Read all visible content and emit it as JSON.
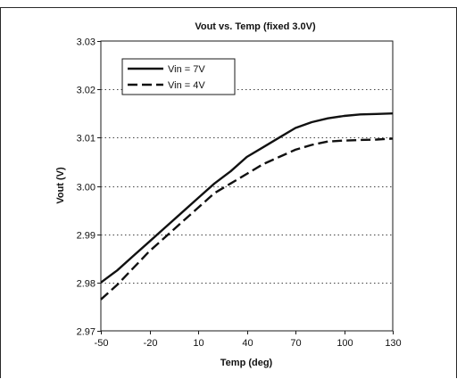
{
  "chart_data": {
    "type": "line",
    "title": "Vout vs. Temp (fixed 3.0V)",
    "xlabel": "Temp (deg)",
    "ylabel": "Vout (V)",
    "xlim": [
      -50,
      130
    ],
    "ylim": [
      2.97,
      3.03
    ],
    "x_ticks": [
      -50,
      -20,
      10,
      40,
      70,
      100,
      130
    ],
    "y_ticks": [
      2.97,
      2.98,
      2.99,
      3.0,
      3.01,
      3.02,
      3.03
    ],
    "x_tick_labels": [
      "-50",
      "-20",
      "10",
      "40",
      "70",
      "100",
      "130"
    ],
    "y_tick_labels": [
      "2.97",
      "2.98",
      "2.99",
      "3.00",
      "3.01",
      "3.02",
      "3.03"
    ],
    "grid": "horizontal-dotted",
    "legend_position": "top-left",
    "series": [
      {
        "name": "Vin = 7V",
        "style": "solid",
        "color": "#111111",
        "x": [
          -50,
          -40,
          -30,
          -20,
          -10,
          0,
          10,
          20,
          30,
          40,
          50,
          60,
          70,
          80,
          90,
          100,
          110,
          120,
          130
        ],
        "y": [
          2.98,
          2.9825,
          2.9855,
          2.9885,
          2.9915,
          2.9945,
          2.9975,
          3.0005,
          3.003,
          3.006,
          3.008,
          3.01,
          3.012,
          3.0132,
          3.014,
          3.0145,
          3.0148,
          3.0149,
          3.015
        ]
      },
      {
        "name": "Vin = 4V",
        "style": "dashed",
        "color": "#111111",
        "x": [
          -50,
          -40,
          -30,
          -20,
          -10,
          0,
          10,
          20,
          30,
          40,
          50,
          60,
          70,
          80,
          90,
          100,
          110,
          120,
          130
        ],
        "y": [
          2.9765,
          2.9795,
          2.983,
          2.9865,
          2.9895,
          2.9925,
          2.9955,
          2.9985,
          3.0005,
          3.0025,
          3.0045,
          3.006,
          3.0075,
          3.0085,
          3.0092,
          3.0094,
          3.0095,
          3.0096,
          3.0098
        ]
      }
    ]
  }
}
